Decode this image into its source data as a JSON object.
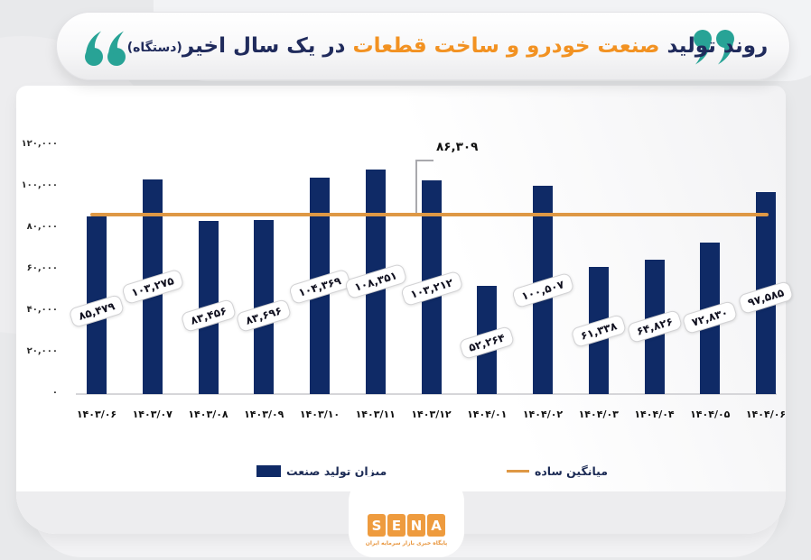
{
  "title": {
    "part1": "روند تولید",
    "part2": "صنعت خودرو و ساخت قطعات",
    "part3": "در یک سال اخیر",
    "suffix": "(دستگاه)"
  },
  "colors": {
    "bar": "#0f2a66",
    "average_line": "#de9845",
    "title_navy": "#202b5c",
    "title_orange": "#f29222",
    "quote_teal": "#28a396",
    "logo_orange": "#ee9b3e"
  },
  "chart_data": {
    "type": "bar",
    "title": "روند تولید صنعت خودرو و ساخت قطعات در یک سال اخیر (دستگاه)",
    "categories": [
      "۱۴۰۳/۰۶",
      "۱۴۰۳/۰۷",
      "۱۴۰۳/۰۸",
      "۱۴۰۳/۰۹",
      "۱۴۰۳/۱۰",
      "۱۴۰۳/۱۱",
      "۱۴۰۳/۱۲",
      "۱۴۰۴/۰۱",
      "۱۴۰۴/۰۲",
      "۱۴۰۴/۰۳",
      "۱۴۰۴/۰۴",
      "۱۴۰۴/۰۵",
      "۱۴۰۴/۰۶"
    ],
    "categories_latin": [
      "1403/06",
      "1403/07",
      "1403/08",
      "1403/09",
      "1403/10",
      "1403/11",
      "1403/12",
      "1404/01",
      "1404/02",
      "1404/03",
      "1404/04",
      "1404/05",
      "1404/06"
    ],
    "values": [
      85479,
      103275,
      83456,
      83696,
      104369,
      108351,
      103212,
      52264,
      100507,
      61338,
      64826,
      72830,
      97585
    ],
    "value_labels": [
      "۸۵,۴۷۹",
      "۱۰۳,۲۷۵",
      "۸۳,۴۵۶",
      "۸۳,۶۹۶",
      "۱۰۴,۳۶۹",
      "۱۰۸,۳۵۱",
      "۱۰۳,۲۱۲",
      "۵۲,۲۶۴",
      "۱۰۰,۵۰۷",
      "۶۱,۳۳۸",
      "۶۴,۸۲۶",
      "۷۲,۸۳۰",
      "۹۷,۵۸۵"
    ],
    "average_line": {
      "value": 86309,
      "label": "۸۶,۳۰۹"
    },
    "ylim": [
      0,
      120000
    ],
    "ytick_values": [
      0,
      20000,
      40000,
      60000,
      80000,
      100000,
      120000
    ],
    "ytick_labels": [
      "۰",
      "۲۰,۰۰۰",
      "۴۰,۰۰۰",
      "۶۰,۰۰۰",
      "۸۰,۰۰۰",
      "۱۰۰,۰۰۰",
      "۱۲۰,۰۰۰"
    ],
    "grid": false,
    "legend_position": "bottom",
    "legend": [
      {
        "label": "میزان تولید صنعت",
        "marker": "bar",
        "color": "#0f2a66"
      },
      {
        "label": "میانگین ساده",
        "marker": "line",
        "color": "#de9845"
      }
    ]
  },
  "legend": {
    "bars_label": "میزان تولید صنعت",
    "line_label": "میانگین ساده"
  },
  "logo": {
    "letters": [
      "S",
      "E",
      "N",
      "A"
    ],
    "tagline": "پایگاه خبری بازار سرمایه ایران"
  }
}
